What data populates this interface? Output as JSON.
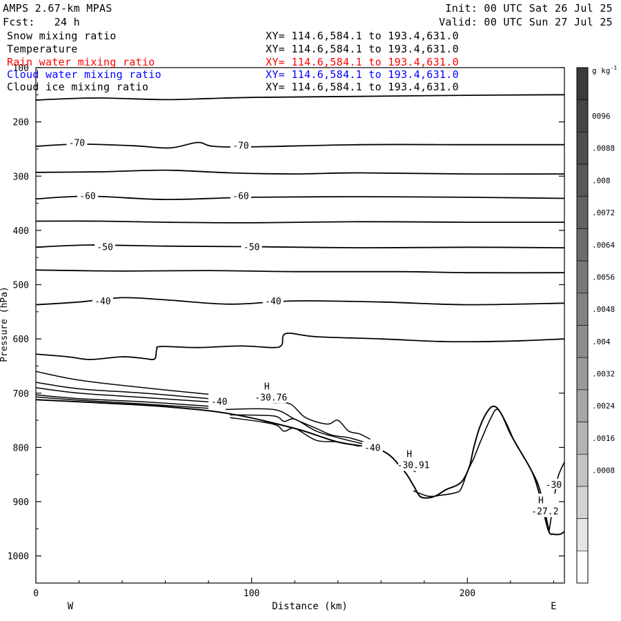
{
  "header": {
    "model": "AMPS 2.67-km MPAS",
    "init": "Init: 00 UTC Sat 26 Jul 25",
    "forecast": "Fcst:   24 h",
    "valid": "Valid: 00 UTC Sun 27 Jul 25"
  },
  "fields": [
    {
      "name": "Snow mixing ratio",
      "xy": "XY= 114.6,584.1 to 193.4,631.0",
      "color": "#000000"
    },
    {
      "name": "Temperature",
      "xy": "XY= 114.6,584.1 to 193.4,631.0",
      "color": "#000000"
    },
    {
      "name": "Rain water mixing ratio",
      "xy": "XY= 114.6,584.1 to 193.4,631.0",
      "color": "#ff0000"
    },
    {
      "name": "Cloud water mixing ratio",
      "xy": "XY= 114.6,584.1 to 193.4,631.0",
      "color": "#0000ff"
    },
    {
      "name": "Cloud ice mixing ratio",
      "xy": "XY= 114.6,584.1 to 193.4,631.0",
      "color": "#000000"
    }
  ],
  "chart_data": {
    "type": "contour",
    "xlabel": "Distance (km)",
    "ylabel": "Pressure (hPa)",
    "xlim": [
      0,
      245
    ],
    "ylim": [
      1050,
      100
    ],
    "x_ticks": [
      0,
      100,
      200
    ],
    "y_ticks": [
      100,
      200,
      300,
      400,
      500,
      600,
      700,
      800,
      900,
      1000
    ],
    "left_label": "W",
    "right_label": "E",
    "isotherms": [
      {
        "x": [
          0,
          10,
          30,
          60,
          80,
          100,
          150,
          200,
          245
        ],
        "p": [
          160,
          158,
          156,
          159,
          157,
          155,
          153,
          151,
          150
        ]
      },
      {
        "x": [
          0,
          20,
          45,
          62,
          75,
          82,
          100,
          150,
          200,
          245
        ],
        "p": [
          245,
          241,
          244,
          248,
          238,
          245,
          246,
          242,
          242,
          242
        ]
      },
      {
        "x": [
          0,
          30,
          60,
          90,
          120,
          150,
          200,
          245
        ],
        "p": [
          293,
          292,
          289,
          294,
          296,
          294,
          296,
          296
        ]
      },
      {
        "x": [
          0,
          25,
          60,
          100,
          150,
          200,
          245
        ],
        "p": [
          342,
          337,
          343,
          339,
          338,
          339,
          341
        ]
      },
      {
        "x": [
          0,
          30,
          60,
          100,
          150,
          200,
          245
        ],
        "p": [
          383,
          383,
          385,
          386,
          384,
          385,
          385
        ]
      },
      {
        "x": [
          0,
          25,
          60,
          100,
          150,
          200,
          245
        ],
        "p": [
          431,
          427,
          429,
          430,
          432,
          431,
          432
        ]
      },
      {
        "x": [
          0,
          40,
          80,
          120,
          170,
          200,
          245
        ],
        "p": [
          473,
          475,
          474,
          476,
          476,
          478,
          478
        ]
      },
      {
        "x": [
          0,
          20,
          40,
          60,
          90,
          120,
          160,
          200,
          245
        ],
        "p": [
          537,
          532,
          524,
          528,
          536,
          530,
          532,
          537,
          534
        ]
      },
      {
        "x": [
          0,
          15,
          25,
          40,
          50,
          55,
          56,
          58,
          75,
          95,
          110,
          114,
          116,
          130,
          160,
          190,
          220,
          245
        ],
        "p": [
          628,
          633,
          638,
          633,
          636,
          637,
          620,
          614,
          616,
          613,
          616,
          611,
          590,
          596,
          600,
          605,
          604,
          600
        ]
      }
    ],
    "isotherm_labels": [
      {
        "text": "-70",
        "x": 19,
        "p": 238
      },
      {
        "text": "-70",
        "x": 95,
        "p": 243
      },
      {
        "text": "-60",
        "x": 24,
        "p": 336
      },
      {
        "text": "-60",
        "x": 95,
        "p": 336
      },
      {
        "text": "-50",
        "x": 32,
        "p": 430
      },
      {
        "text": "-50",
        "x": 100,
        "p": 430
      },
      {
        "text": "-40",
        "x": 31,
        "p": 530
      },
      {
        "text": "-40",
        "x": 110,
        "p": 530
      }
    ],
    "near_surface_contours": [
      {
        "x": [
          0,
          20,
          50,
          80
        ],
        "p": [
          660,
          676,
          690,
          702
        ]
      },
      {
        "x": [
          0,
          20,
          50,
          80
        ],
        "p": [
          680,
          692,
          700,
          710
        ]
      },
      {
        "x": [
          0,
          20,
          50,
          80
        ],
        "p": [
          690,
          700,
          708,
          716
        ]
      },
      {
        "x": [
          0,
          20,
          50,
          80
        ],
        "p": [
          703,
          710,
          716,
          724
        ]
      },
      {
        "x": [
          0,
          20,
          50,
          80
        ],
        "p": [
          707,
          713,
          720,
          728
        ]
      },
      {
        "x": [
          90,
          110,
          115,
          120,
          130,
          140,
          150,
          154
        ],
        "p": [
          740,
          742,
          752,
          748,
          770,
          782,
          792,
          795
        ]
      },
      {
        "x": [
          90,
          110,
          115,
          120,
          130,
          140,
          150
        ],
        "p": [
          745,
          757,
          770,
          765,
          787,
          790,
          798
        ]
      },
      {
        "x": [
          88,
          110,
          120,
          130,
          137,
          145,
          152
        ],
        "p": [
          730,
          730,
          748,
          765,
          777,
          782,
          790
        ]
      },
      {
        "x": [
          110,
          118,
          125,
          135,
          140,
          145,
          150,
          155
        ],
        "p": [
          718,
          720,
          745,
          757,
          750,
          770,
          775,
          785
        ]
      },
      {
        "x": [
          168,
          172,
          176
        ],
        "p": [
          816,
          835,
          845
        ]
      }
    ],
    "terrain": {
      "x": [
        0,
        30,
        60,
        90,
        120,
        140,
        160,
        170,
        175,
        178,
        182,
        186,
        190,
        195,
        198,
        201,
        203,
        206,
        210,
        213,
        216,
        220,
        225,
        230,
        233,
        236,
        238,
        240,
        243,
        245
      ],
      "p": [
        712,
        718,
        725,
        738,
        765,
        790,
        805,
        840,
        870,
        890,
        893,
        888,
        878,
        870,
        860,
        835,
        800,
        760,
        730,
        725,
        740,
        775,
        810,
        845,
        880,
        930,
        957,
        960,
        960,
        955
      ]
    },
    "terrain_inner": {
      "x": [
        175,
        182,
        188,
        194,
        197,
        200,
        203,
        206,
        211,
        214,
        218,
        222,
        228,
        233,
        236,
        238
      ],
      "p": [
        880,
        890,
        888,
        884,
        877,
        845,
        820,
        790,
        745,
        730,
        755,
        790,
        830,
        870,
        920,
        955
      ]
    },
    "terrain_right_edge": {
      "x": [
        238,
        240,
        242,
        245
      ],
      "p": [
        952,
        900,
        855,
        827
      ]
    },
    "highs": [
      {
        "label": "H",
        "value": "-30.76",
        "x": 109,
        "p": 693
      },
      {
        "label": "H",
        "value": "-30.91",
        "x": 175,
        "p": 818
      },
      {
        "label": "H",
        "value": "-27.2",
        "x": 236,
        "p": 903
      }
    ],
    "surface_labels": [
      {
        "text": "-40",
        "x": 85,
        "p": 715
      },
      {
        "text": "-40",
        "x": 156,
        "p": 800
      },
      {
        "text": "-30",
        "x": 240,
        "p": 868
      }
    ],
    "colorbar": {
      "unit": "g kg",
      "unit_exponent": "-1",
      "ticks": [
        "0096",
        ".0088",
        ".008",
        ".0072",
        ".0064",
        ".0056",
        ".0048",
        ".004",
        ".0032",
        ".0024",
        ".0016",
        ".0008"
      ],
      "segment_colors": [
        "#3a3a3a",
        "#444444",
        "#4e4e4e",
        "#585858",
        "#626262",
        "#6c6c6c",
        "#777777",
        "#828282",
        "#8d8d8d",
        "#999999",
        "#a6a6a6",
        "#b4b4b4",
        "#c3c3c3",
        "#d3d3d3",
        "#e5e5e5",
        "#ffffff"
      ]
    }
  }
}
